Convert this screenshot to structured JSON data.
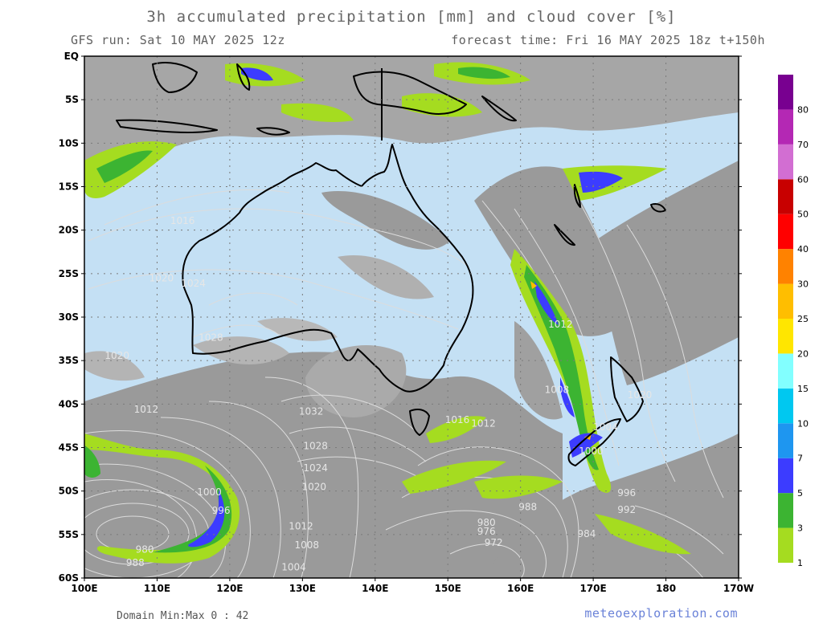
{
  "header": {
    "title": "3h accumulated precipitation [mm] and cloud cover [%]",
    "run": "GFS run: Sat 10 MAY 2025 12z",
    "forecast": "forecast time: Fri 16 MAY 2025 18z  t+150h"
  },
  "axes": {
    "lat_labels": [
      "EQ",
      "5S",
      "10S",
      "15S",
      "20S",
      "25S",
      "30S",
      "35S",
      "40S",
      "45S",
      "50S",
      "55S",
      "60S"
    ],
    "lon_labels": [
      "100E",
      "110E",
      "120E",
      "130E",
      "140E",
      "150E",
      "160E",
      "170E",
      "180",
      "170W"
    ]
  },
  "isobar_labels": [
    {
      "text": "1012",
      "lon": 108.5,
      "lat": -41.0
    },
    {
      "text": "1000",
      "lon": 117.2,
      "lat": -50.5
    },
    {
      "text": "996",
      "lon": 118.8,
      "lat": -52.6
    },
    {
      "text": "980",
      "lon": 108.3,
      "lat": -57.1
    },
    {
      "text": "988",
      "lon": 107.0,
      "lat": -58.6
    },
    {
      "text": "1032",
      "lon": 131.2,
      "lat": -41.2
    },
    {
      "text": "1028",
      "lon": 131.8,
      "lat": -45.2
    },
    {
      "text": "1024",
      "lon": 131.8,
      "lat": -47.7
    },
    {
      "text": "1020",
      "lon": 131.6,
      "lat": -49.9
    },
    {
      "text": "1012",
      "lon": 129.8,
      "lat": -54.4
    },
    {
      "text": "1008",
      "lon": 130.6,
      "lat": -56.6
    },
    {
      "text": "1004",
      "lon": 128.8,
      "lat": -59.1
    },
    {
      "text": "1016",
      "lon": 151.3,
      "lat": -42.2
    },
    {
      "text": "1012",
      "lon": 154.9,
      "lat": -42.6
    },
    {
      "text": "1012",
      "lon": 165.5,
      "lat": -31.2
    },
    {
      "text": "1008",
      "lon": 165.0,
      "lat": -38.7
    },
    {
      "text": "1004",
      "lon": 171.7,
      "lat": -43.0
    },
    {
      "text": "1000",
      "lon": 169.7,
      "lat": -45.8
    },
    {
      "text": "1020",
      "lon": 176.4,
      "lat": -39.3
    },
    {
      "text": "996",
      "lon": 174.6,
      "lat": -50.6
    },
    {
      "text": "992",
      "lon": 174.6,
      "lat": -52.5
    },
    {
      "text": "988",
      "lon": 161.0,
      "lat": -52.2
    },
    {
      "text": "980",
      "lon": 155.3,
      "lat": -54.0
    },
    {
      "text": "976",
      "lon": 155.3,
      "lat": -55.0
    },
    {
      "text": "972",
      "lon": 156.3,
      "lat": -56.3
    },
    {
      "text": "984",
      "lon": 169.1,
      "lat": -55.3
    },
    {
      "text": "1016",
      "lon": 113.5,
      "lat": -19.3
    },
    {
      "text": "1020",
      "lon": 110.6,
      "lat": -25.9
    },
    {
      "text": "1024",
      "lon": 115.0,
      "lat": -26.5
    },
    {
      "text": "1028",
      "lon": 117.4,
      "lat": -32.7
    },
    {
      "text": "1020",
      "lon": 104.5,
      "lat": -34.8
    }
  ],
  "legend": {
    "values": [
      "1",
      "3",
      "5",
      "7",
      "10",
      "15",
      "20",
      "25",
      "30",
      "40",
      "50",
      "60",
      "70",
      "80"
    ],
    "colors": [
      "#a5dc20",
      "#3cb432",
      "#3c3cff",
      "#1e96f0",
      "#00c8f0",
      "#82ffff",
      "#ffe600",
      "#ffbe00",
      "#ff8200",
      "#ff0000",
      "#c80000",
      "#d26ed2",
      "#b428b4",
      "#780090"
    ]
  },
  "footer": {
    "domain": "Domain Min:Max 0 : 42",
    "site": "meteoexploration.com"
  }
}
